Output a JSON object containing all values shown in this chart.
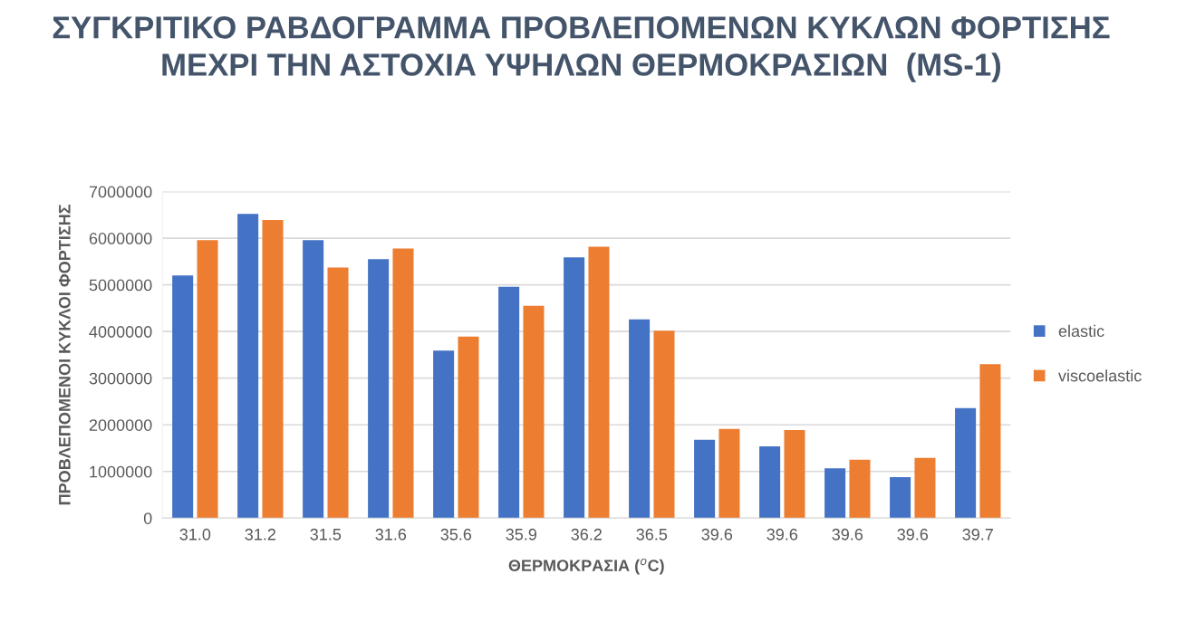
{
  "chart_data": {
    "type": "bar",
    "title": "ΣΥΓΚΡΙΤΙΚΟ ΡΑΒΔΟΓΡΑΜΜΑ ΠΡΟΒΛΕΠΟΜΕΝΩΝ ΚΥΚΛΩΝ ΦΟΡΤΙΣΗΣ ΜΕΧΡΙ ΤΗΝ ΑΣΤΟΧΙΑ ΥΨΗΛΩΝ ΘΕΡΜΟΚΡΑΣΙΩΝ  (MS-1)",
    "xlabel": "ΘΕΡΜΟΚΡΑΣΙΑ ($^{o}$C)",
    "ylabel": "ΠΡΟΒΛΕΠΟΜΕΝΟΙ ΚΥΚΛΟΙ ΦΟΡΤΙΣΗΣ",
    "categories": [
      "31.0",
      "31.2",
      "31.5",
      "31.6",
      "35.6",
      "35.9",
      "36.2",
      "36.5",
      "39.6",
      "39.6",
      "39.6",
      "39.6",
      "39.7"
    ],
    "series": [
      {
        "name": "elastic",
        "color": "#4472c4",
        "values": [
          5200000,
          6520000,
          5960000,
          5550000,
          3590000,
          4960000,
          5590000,
          4260000,
          1680000,
          1540000,
          1070000,
          880000,
          2360000
        ]
      },
      {
        "name": "viscoelastic",
        "color": "#ed7d31",
        "values": [
          5960000,
          6390000,
          5370000,
          5780000,
          3890000,
          4550000,
          5820000,
          4020000,
          1910000,
          1890000,
          1250000,
          1290000,
          3300000
        ]
      }
    ],
    "ylim": [
      0,
      7000000
    ],
    "yticks": [
      0,
      1000000,
      2000000,
      3000000,
      4000000,
      5000000,
      6000000,
      7000000
    ],
    "grid": "y",
    "legend": "right"
  }
}
